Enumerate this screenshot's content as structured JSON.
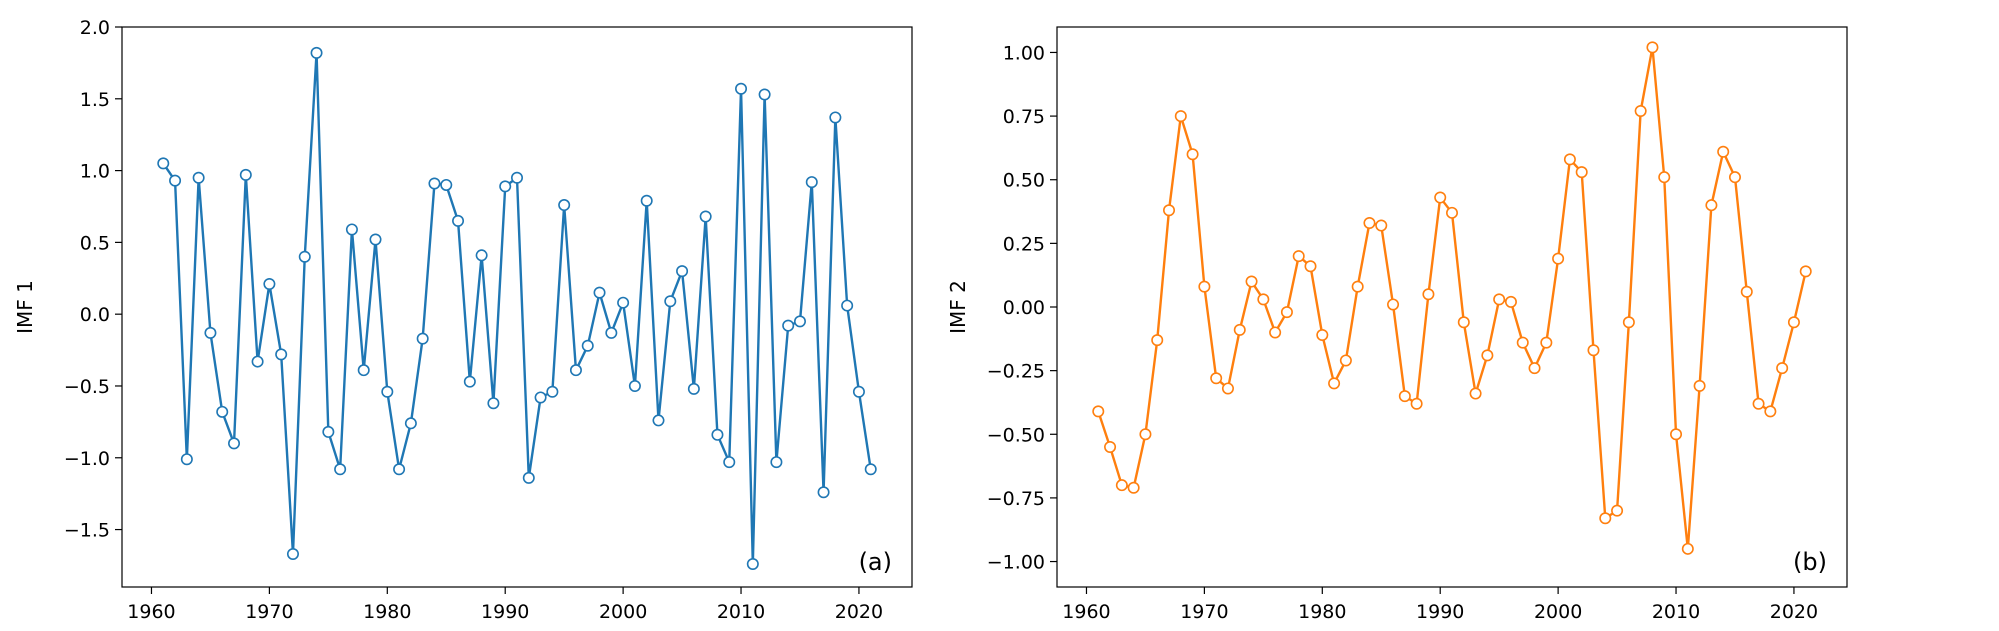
{
  "chart_data": [
    {
      "type": "line",
      "panel_label": "(a)",
      "xlabel": "",
      "ylabel": "IMF 1",
      "xlim": [
        1957.5,
        2024.5
      ],
      "ylim": [
        -1.9,
        2.0
      ],
      "color": "#1f77b4",
      "marker": "open-circle",
      "xticks": [
        1960,
        1970,
        1980,
        1990,
        2000,
        2010,
        2020
      ],
      "xtick_labels": [
        "1960",
        "1970",
        "1980",
        "1990",
        "2000",
        "2010",
        "2020"
      ],
      "yticks": [
        -1.5,
        -1.0,
        -0.5,
        0.0,
        0.5,
        1.0,
        1.5,
        2.0
      ],
      "ytick_labels": [
        "−1.5",
        "−1.0",
        "−0.5",
        "0.0",
        "0.5",
        "1.0",
        "1.5",
        "2.0"
      ],
      "x": [
        1961,
        1962,
        1963,
        1964,
        1965,
        1966,
        1967,
        1968,
        1969,
        1970,
        1971,
        1972,
        1973,
        1974,
        1975,
        1976,
        1977,
        1978,
        1979,
        1980,
        1981,
        1982,
        1983,
        1984,
        1985,
        1986,
        1987,
        1988,
        1989,
        1990,
        1991,
        1992,
        1993,
        1994,
        1995,
        1996,
        1997,
        1998,
        1999,
        2000,
        2001,
        2002,
        2003,
        2004,
        2005,
        2006,
        2007,
        2008,
        2009,
        2010,
        2011,
        2012,
        2013,
        2014,
        2015,
        2016,
        2017,
        2018,
        2019,
        2020,
        2021
      ],
      "y": [
        1.05,
        0.93,
        -1.01,
        0.95,
        -0.13,
        -0.68,
        -0.9,
        0.97,
        -0.33,
        0.21,
        -0.28,
        -1.67,
        0.4,
        1.82,
        -0.82,
        -1.08,
        0.59,
        -0.39,
        0.52,
        -0.54,
        -1.08,
        -0.76,
        -0.17,
        0.91,
        0.9,
        0.65,
        -0.47,
        0.41,
        -0.62,
        0.89,
        0.95,
        -1.14,
        -0.58,
        -0.54,
        0.76,
        -0.39,
        -0.22,
        0.15,
        -0.13,
        0.08,
        -0.5,
        0.79,
        -0.74,
        0.09,
        0.3,
        -0.52,
        0.68,
        -0.84,
        -1.03,
        1.57,
        -1.74,
        1.53,
        -1.03,
        -0.08,
        -0.05,
        0.92,
        -1.24,
        1.37,
        0.06,
        -0.54,
        -1.08
      ]
    },
    {
      "type": "line",
      "panel_label": "(b)",
      "xlabel": "",
      "ylabel": "IMF 2",
      "xlim": [
        1957.5,
        2024.5
      ],
      "ylim": [
        -1.1,
        1.1
      ],
      "color": "#ff7f0e",
      "marker": "open-circle",
      "xticks": [
        1960,
        1970,
        1980,
        1990,
        2000,
        2010,
        2020
      ],
      "xtick_labels": [
        "1960",
        "1970",
        "1980",
        "1990",
        "2000",
        "2010",
        "2020"
      ],
      "yticks": [
        -1.0,
        -0.75,
        -0.5,
        -0.25,
        0.0,
        0.25,
        0.5,
        0.75,
        1.0
      ],
      "ytick_labels": [
        "−1.00",
        "−0.75",
        "−0.50",
        "−0.25",
        "0.00",
        "0.25",
        "0.50",
        "0.75",
        "1.00"
      ],
      "x": [
        1961,
        1962,
        1963,
        1964,
        1965,
        1966,
        1967,
        1968,
        1969,
        1970,
        1971,
        1972,
        1973,
        1974,
        1975,
        1976,
        1977,
        1978,
        1979,
        1980,
        1981,
        1982,
        1983,
        1984,
        1985,
        1986,
        1987,
        1988,
        1989,
        1990,
        1991,
        1992,
        1993,
        1994,
        1995,
        1996,
        1997,
        1998,
        1999,
        2000,
        2001,
        2002,
        2003,
        2004,
        2005,
        2006,
        2007,
        2008,
        2009,
        2010,
        2011,
        2012,
        2013,
        2014,
        2015,
        2016,
        2017,
        2018,
        2019,
        2020,
        2021
      ],
      "y": [
        -0.41,
        -0.55,
        -0.7,
        -0.71,
        -0.5,
        -0.13,
        0.38,
        0.75,
        0.6,
        0.08,
        -0.28,
        -0.32,
        -0.09,
        0.1,
        0.03,
        -0.1,
        -0.02,
        0.2,
        0.16,
        -0.11,
        -0.3,
        -0.21,
        0.08,
        0.33,
        0.32,
        0.01,
        -0.35,
        -0.38,
        0.05,
        0.43,
        0.37,
        -0.06,
        -0.34,
        -0.19,
        0.03,
        0.02,
        -0.14,
        -0.24,
        -0.14,
        0.19,
        0.58,
        0.53,
        -0.17,
        -0.83,
        -0.8,
        -0.06,
        0.77,
        1.02,
        0.51,
        -0.5,
        -0.95,
        -0.31,
        0.4,
        0.61,
        0.51,
        0.06,
        -0.38,
        -0.41,
        -0.24,
        -0.06,
        0.14
      ]
    }
  ]
}
